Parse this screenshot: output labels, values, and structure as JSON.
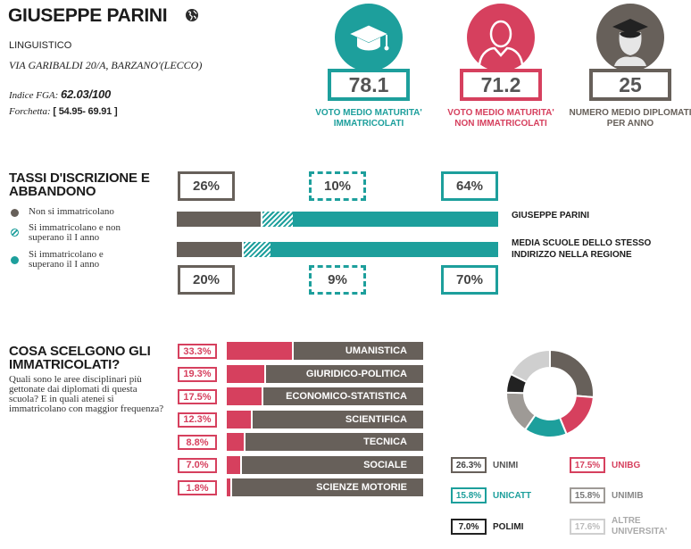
{
  "school": {
    "name": "GIUSEPPE PARINI",
    "type": "LINGUISTICO",
    "address": "VIA GARIBALDI 20/A, BARZANO'(LECCO)",
    "fga_label": "Indice FGA:",
    "fga_value": "62.03/100",
    "fork_label": "Forchetta:",
    "fork_value": "[ 54.95- 69.91 ]"
  },
  "kpis": [
    {
      "value": "78.1",
      "label": "VOTO MEDIO MATURITA' IMMATRICOLATI",
      "color": "#1d9f9c",
      "icon": "graduation-cap-icon"
    },
    {
      "value": "71.2",
      "label": "VOTO MEDIO MATURITA' NON IMMATRICOLATI",
      "color": "#d6405e",
      "icon": "person-icon"
    },
    {
      "value": "25",
      "label": "NUMERO MEDIO DIPLOMATI PER ANNO",
      "color": "#67605a",
      "icon": "graduate-person-icon"
    }
  ],
  "enrollment": {
    "title_line1": "TASSI D'ISCRIZIONE E",
    "title_line2": "ABBANDONO",
    "legend": [
      {
        "text": "Non si immatricolano",
        "color": "#67605a"
      },
      {
        "text": "Si immatricolano e non superano il I anno",
        "color": "#1d9f9c"
      },
      {
        "text": "Si immatricolano e superano il I anno",
        "color": "#1d9f9c"
      }
    ],
    "school_row": {
      "label": "GIUSEPPE PARINI",
      "not_enrolled": 26,
      "dropout": 10,
      "passed": 64,
      "labels": [
        "26%",
        "10%",
        "64%"
      ]
    },
    "region_row": {
      "label": "MEDIA SCUOLE DELLO STESSO INDIRIZZO NELLA REGIONE",
      "not_enrolled": 20,
      "dropout": 9,
      "passed": 70,
      "labels": [
        "20%",
        "9%",
        "70%"
      ]
    }
  },
  "disciplines": {
    "title_line1": "COSA SCELGONO GLI",
    "title_line2": "IMMATRICOLATI?",
    "question": "Quali sono le aree disciplinari più gettonate dai diplomati di questa scuola? E in quali atenei si immatricolano con maggior frequenza?",
    "items": [
      {
        "label": "UMANISTICA",
        "value": 33.3,
        "text": "33.3%"
      },
      {
        "label": "GIURIDICO-POLITICA",
        "value": 19.3,
        "text": "19.3%"
      },
      {
        "label": "ECONOMICO-STATISTICA",
        "value": 17.5,
        "text": "17.5%"
      },
      {
        "label": "SCIENTIFICA",
        "value": 12.3,
        "text": "12.3%"
      },
      {
        "label": "TECNICA",
        "value": 8.8,
        "text": "8.8%"
      },
      {
        "label": "SOCIALE",
        "value": 7.0,
        "text": "7.0%"
      },
      {
        "label": "SCIENZE MOTORIE",
        "value": 1.8,
        "text": "1.8%"
      }
    ]
  },
  "universities": [
    {
      "name": "UNIMI",
      "value": 26.3,
      "text": "26.3%",
      "color": "#67605a"
    },
    {
      "name": "UNIBG",
      "value": 17.5,
      "text": "17.5%",
      "color": "#d6405e"
    },
    {
      "name": "UNICATT",
      "value": 15.8,
      "text": "15.8%",
      "color": "#1d9f9c"
    },
    {
      "name": "UNIMIB",
      "value": 15.8,
      "text": "15.8%",
      "color": "#9e9a96"
    },
    {
      "name": "POLIMI",
      "value": 7.0,
      "text": "7.0%",
      "color": "#222222"
    },
    {
      "name": "ALTRE UNIVERSITA'",
      "value": 17.6,
      "text": "17.6%",
      "color": "#cfcfcf"
    }
  ]
}
